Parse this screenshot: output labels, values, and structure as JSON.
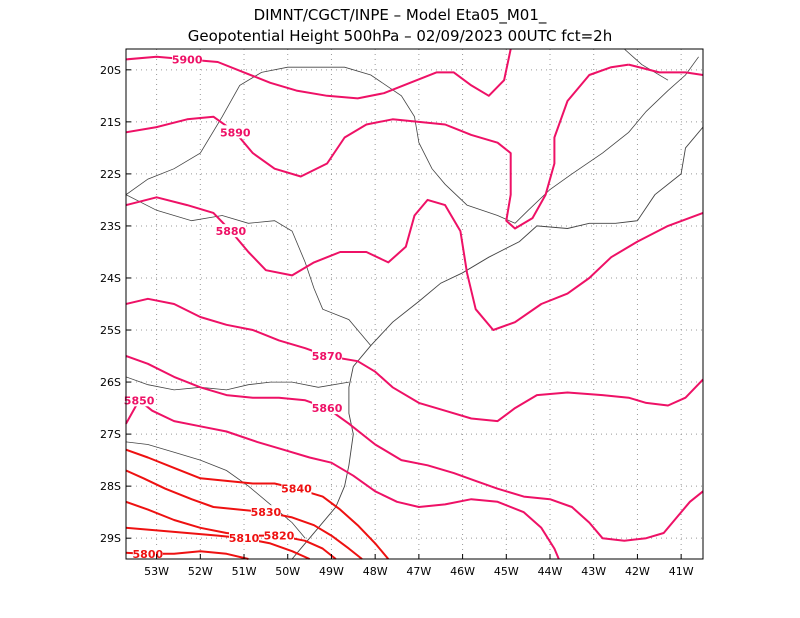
{
  "title_line1": "DIMNT/CGCT/INPE –  Model Eta05_M01_",
  "title_line2": "Geopotential Height 500hPa –  02/09/2023 00UTC fct=2h",
  "colors": {
    "contour_pink": "#ee1166",
    "contour_red": "#ee1111",
    "coast": "#444444",
    "grid": "#999999"
  },
  "axes": {
    "lon_ticks": [
      "53W",
      "52W",
      "51W",
      "50W",
      "49W",
      "48W",
      "47W",
      "46W",
      "45W",
      "44W",
      "43W",
      "42W",
      "41W"
    ],
    "lat_ticks": [
      "20S",
      "21S",
      "22S",
      "23S",
      "24S",
      "25S",
      "26S",
      "27S",
      "28S",
      "29S"
    ],
    "lon_range": [
      -53.7,
      -40.5
    ],
    "lat_range": [
      -29.4,
      -19.6
    ],
    "grid": "dotted"
  },
  "contours": [
    {
      "value": "5900",
      "label": "5900",
      "color": "pink",
      "points": [
        [
          -53.7,
          -19.8
        ],
        [
          -53.0,
          -19.75
        ],
        [
          -52.3,
          -19.8
        ],
        [
          -51.6,
          -19.85
        ],
        [
          -51.0,
          -20.05
        ],
        [
          -50.4,
          -20.25
        ],
        [
          -49.8,
          -20.4
        ],
        [
          -49.1,
          -20.5
        ],
        [
          -48.4,
          -20.55
        ],
        [
          -47.8,
          -20.45
        ],
        [
          -47.2,
          -20.25
        ],
        [
          -46.6,
          -20.05
        ],
        [
          -46.2,
          -20.05
        ],
        [
          -45.8,
          -20.3
        ],
        [
          -45.4,
          -20.5
        ],
        [
          -45.05,
          -20.2
        ],
        [
          -44.9,
          -19.6
        ]
      ]
    },
    {
      "value": "5900",
      "label": "",
      "color": "pink",
      "points": [
        [
          -42.2,
          -19.9
        ],
        [
          -41.5,
          -20.05
        ],
        [
          -40.9,
          -20.05
        ],
        [
          -40.5,
          -20.1
        ]
      ]
    },
    {
      "value": "5890",
      "label": "5890",
      "color": "pink",
      "points": [
        [
          -53.7,
          -21.2
        ],
        [
          -53.0,
          -21.1
        ],
        [
          -52.3,
          -20.95
        ],
        [
          -51.7,
          -20.9
        ],
        [
          -51.2,
          -21.2
        ],
        [
          -50.8,
          -21.6
        ],
        [
          -50.3,
          -21.9
        ],
        [
          -49.7,
          -22.05
        ],
        [
          -49.1,
          -21.8
        ],
        [
          -48.7,
          -21.3
        ],
        [
          -48.2,
          -21.05
        ],
        [
          -47.6,
          -20.95
        ],
        [
          -47.0,
          -21.0
        ],
        [
          -46.4,
          -21.05
        ],
        [
          -45.8,
          -21.25
        ],
        [
          -45.2,
          -21.4
        ],
        [
          -44.9,
          -21.6
        ],
        [
          -44.9,
          -22.4
        ],
        [
          -45.0,
          -22.9
        ],
        [
          -44.8,
          -23.05
        ],
        [
          -44.4,
          -22.85
        ],
        [
          -44.1,
          -22.4
        ],
        [
          -43.9,
          -21.8
        ],
        [
          -43.9,
          -21.3
        ],
        [
          -43.6,
          -20.6
        ],
        [
          -43.1,
          -20.1
        ],
        [
          -42.6,
          -19.95
        ],
        [
          -42.2,
          -19.9
        ]
      ]
    },
    {
      "value": "5880",
      "label": "5880",
      "color": "pink",
      "points": [
        [
          -53.7,
          -22.6
        ],
        [
          -53.0,
          -22.45
        ],
        [
          -52.3,
          -22.6
        ],
        [
          -51.7,
          -22.75
        ],
        [
          -51.3,
          -23.1
        ],
        [
          -50.9,
          -23.5
        ],
        [
          -50.5,
          -23.85
        ],
        [
          -49.9,
          -23.95
        ],
        [
          -49.4,
          -23.7
        ],
        [
          -48.8,
          -23.5
        ],
        [
          -48.2,
          -23.5
        ],
        [
          -47.7,
          -23.7
        ],
        [
          -47.3,
          -23.4
        ],
        [
          -47.1,
          -22.8
        ],
        [
          -46.8,
          -22.5
        ],
        [
          -46.4,
          -22.6
        ],
        [
          -46.05,
          -23.1
        ],
        [
          -45.9,
          -23.9
        ],
        [
          -45.7,
          -24.6
        ],
        [
          -45.3,
          -25.0
        ],
        [
          -44.8,
          -24.85
        ],
        [
          -44.2,
          -24.5
        ],
        [
          -43.6,
          -24.3
        ],
        [
          -43.1,
          -24.0
        ],
        [
          -42.6,
          -23.6
        ],
        [
          -42.0,
          -23.3
        ],
        [
          -41.3,
          -23.0
        ],
        [
          -40.5,
          -22.75
        ]
      ]
    },
    {
      "value": "5870",
      "label": "5870",
      "color": "pink",
      "points": [
        [
          -53.7,
          -24.5
        ],
        [
          -53.2,
          -24.4
        ],
        [
          -52.6,
          -24.5
        ],
        [
          -52.0,
          -24.75
        ],
        [
          -51.4,
          -24.9
        ],
        [
          -50.8,
          -25.0
        ],
        [
          -50.2,
          -25.2
        ],
        [
          -49.6,
          -25.35
        ],
        [
          -49.1,
          -25.5
        ],
        [
          -48.4,
          -25.6
        ],
        [
          -48.0,
          -25.8
        ],
        [
          -47.6,
          -26.1
        ],
        [
          -47.0,
          -26.4
        ],
        [
          -46.4,
          -26.55
        ],
        [
          -45.8,
          -26.7
        ],
        [
          -45.2,
          -26.75
        ],
        [
          -44.8,
          -26.5
        ],
        [
          -44.3,
          -26.25
        ],
        [
          -43.6,
          -26.2
        ],
        [
          -42.8,
          -26.25
        ],
        [
          -42.2,
          -26.3
        ],
        [
          -41.8,
          -26.4
        ],
        [
          -41.3,
          -26.45
        ],
        [
          -40.9,
          -26.3
        ],
        [
          -40.5,
          -25.95
        ]
      ]
    },
    {
      "value": "5860",
      "label": "5860",
      "color": "pink",
      "points": [
        [
          -53.7,
          -25.5
        ],
        [
          -53.2,
          -25.65
        ],
        [
          -52.6,
          -25.9
        ],
        [
          -52.0,
          -26.1
        ],
        [
          -51.4,
          -26.25
        ],
        [
          -50.8,
          -26.3
        ],
        [
          -50.2,
          -26.3
        ],
        [
          -49.6,
          -26.35
        ],
        [
          -49.1,
          -26.5
        ],
        [
          -48.6,
          -26.8
        ],
        [
          -48.0,
          -27.2
        ],
        [
          -47.4,
          -27.5
        ],
        [
          -46.8,
          -27.6
        ],
        [
          -46.2,
          -27.75
        ],
        [
          -45.7,
          -27.9
        ],
        [
          -45.2,
          -28.05
        ],
        [
          -44.6,
          -28.2
        ],
        [
          -44.0,
          -28.25
        ],
        [
          -43.5,
          -28.4
        ],
        [
          -43.1,
          -28.7
        ],
        [
          -42.8,
          -29.0
        ],
        [
          -42.3,
          -29.05
        ],
        [
          -41.8,
          -29.0
        ],
        [
          -41.4,
          -28.9
        ],
        [
          -41.1,
          -28.6
        ],
        [
          -40.8,
          -28.3
        ],
        [
          -40.5,
          -28.1
        ]
      ]
    },
    {
      "value": "5850",
      "label": "5850",
      "color": "pink",
      "points": [
        [
          -53.7,
          -26.8
        ],
        [
          -53.4,
          -26.35
        ],
        [
          -53.1,
          -26.55
        ],
        [
          -52.6,
          -26.75
        ],
        [
          -52.0,
          -26.85
        ],
        [
          -51.4,
          -26.95
        ],
        [
          -50.7,
          -27.15
        ],
        [
          -50.1,
          -27.3
        ],
        [
          -49.5,
          -27.45
        ],
        [
          -49.0,
          -27.55
        ],
        [
          -48.5,
          -27.8
        ],
        [
          -48.0,
          -28.1
        ],
        [
          -47.5,
          -28.3
        ],
        [
          -47.0,
          -28.4
        ],
        [
          -46.4,
          -28.35
        ],
        [
          -45.8,
          -28.25
        ],
        [
          -45.2,
          -28.3
        ],
        [
          -44.6,
          -28.5
        ],
        [
          -44.2,
          -28.8
        ],
        [
          -43.9,
          -29.2
        ],
        [
          -43.8,
          -29.4
        ]
      ]
    },
    {
      "value": "5840",
      "label": "5840",
      "color": "red",
      "points": [
        [
          -53.7,
          -27.3
        ],
        [
          -53.2,
          -27.45
        ],
        [
          -52.6,
          -27.65
        ],
        [
          -52.0,
          -27.85
        ],
        [
          -51.4,
          -27.9
        ],
        [
          -50.8,
          -27.95
        ],
        [
          -50.3,
          -27.95
        ],
        [
          -49.8,
          -28.05
        ],
        [
          -49.2,
          -28.2
        ],
        [
          -48.8,
          -28.45
        ],
        [
          -48.4,
          -28.75
        ],
        [
          -48.0,
          -29.1
        ],
        [
          -47.7,
          -29.4
        ]
      ]
    },
    {
      "value": "5830",
      "label": "5830",
      "color": "red",
      "points": [
        [
          -53.7,
          -27.7
        ],
        [
          -53.3,
          -27.85
        ],
        [
          -52.8,
          -28.05
        ],
        [
          -52.2,
          -28.25
        ],
        [
          -51.7,
          -28.4
        ],
        [
          -51.1,
          -28.45
        ],
        [
          -50.5,
          -28.5
        ],
        [
          -49.9,
          -28.6
        ],
        [
          -49.4,
          -28.75
        ],
        [
          -49.0,
          -28.95
        ],
        [
          -48.6,
          -29.2
        ],
        [
          -48.3,
          -29.4
        ]
      ]
    },
    {
      "value": "5820",
      "label": "5820",
      "color": "red",
      "points": [
        [
          -53.7,
          -28.3
        ],
        [
          -53.2,
          -28.45
        ],
        [
          -52.6,
          -28.65
        ],
        [
          -52.0,
          -28.8
        ],
        [
          -51.4,
          -28.9
        ],
        [
          -50.8,
          -28.95
        ],
        [
          -50.2,
          -28.95
        ],
        [
          -49.6,
          -29.05
        ],
        [
          -49.2,
          -29.2
        ],
        [
          -48.9,
          -29.4
        ]
      ]
    },
    {
      "value": "5810",
      "label": "5810",
      "color": "red",
      "points": [
        [
          -53.7,
          -28.8
        ],
        [
          -53.0,
          -28.85
        ],
        [
          -52.3,
          -28.9
        ],
        [
          -51.6,
          -28.95
        ],
        [
          -51.0,
          -29.0
        ],
        [
          -50.4,
          -29.1
        ],
        [
          -49.9,
          -29.25
        ],
        [
          -49.5,
          -29.4
        ]
      ]
    },
    {
      "value": "5800",
      "label": "5800",
      "color": "red",
      "points": [
        [
          -53.7,
          -29.28
        ],
        [
          -53.2,
          -29.3
        ],
        [
          -52.6,
          -29.3
        ],
        [
          -52.0,
          -29.25
        ],
        [
          -51.4,
          -29.3
        ],
        [
          -50.9,
          -29.4
        ]
      ]
    }
  ],
  "coastline": [
    [
      -40.5,
      -21.1
    ],
    [
      -40.9,
      -21.5
    ],
    [
      -41.0,
      -22.0
    ],
    [
      -41.6,
      -22.4
    ],
    [
      -42.0,
      -22.9
    ],
    [
      -42.5,
      -22.95
    ],
    [
      -43.1,
      -22.95
    ],
    [
      -43.6,
      -23.05
    ],
    [
      -44.3,
      -23.0
    ],
    [
      -44.7,
      -23.3
    ],
    [
      -45.4,
      -23.6
    ],
    [
      -46.0,
      -23.9
    ],
    [
      -46.5,
      -24.1
    ],
    [
      -47.0,
      -24.45
    ],
    [
      -47.6,
      -24.85
    ],
    [
      -48.1,
      -25.3
    ],
    [
      -48.5,
      -25.7
    ],
    [
      -48.6,
      -26.1
    ],
    [
      -48.6,
      -26.6
    ],
    [
      -48.5,
      -27.0
    ],
    [
      -48.6,
      -27.6
    ],
    [
      -48.7,
      -28.0
    ],
    [
      -48.9,
      -28.4
    ],
    [
      -49.3,
      -28.8
    ],
    [
      -49.7,
      -29.2
    ],
    [
      -49.9,
      -29.4
    ]
  ],
  "borders": [
    [
      [
        -53.7,
        -22.4
      ],
      [
        -53.2,
        -22.1
      ],
      [
        -52.6,
        -21.9
      ],
      [
        -52.0,
        -21.6
      ],
      [
        -51.5,
        -20.9
      ],
      [
        -51.1,
        -20.3
      ],
      [
        -50.6,
        -20.05
      ],
      [
        -50.0,
        -19.95
      ],
      [
        -49.3,
        -19.95
      ],
      [
        -48.7,
        -19.95
      ],
      [
        -48.1,
        -20.1
      ],
      [
        -47.4,
        -20.5
      ],
      [
        -47.1,
        -20.9
      ],
      [
        -47.0,
        -21.4
      ],
      [
        -46.7,
        -21.9
      ],
      [
        -46.4,
        -22.2
      ],
      [
        -45.9,
        -22.6
      ],
      [
        -45.2,
        -22.8
      ],
      [
        -44.8,
        -22.95
      ]
    ],
    [
      [
        -53.7,
        -22.4
      ],
      [
        -53.0,
        -22.7
      ],
      [
        -52.2,
        -22.9
      ],
      [
        -51.5,
        -22.8
      ],
      [
        -50.9,
        -22.95
      ],
      [
        -50.3,
        -22.9
      ],
      [
        -49.9,
        -23.1
      ],
      [
        -49.6,
        -23.7
      ],
      [
        -49.4,
        -24.2
      ],
      [
        -49.2,
        -24.6
      ],
      [
        -48.6,
        -24.8
      ],
      [
        -48.1,
        -25.3
      ]
    ],
    [
      [
        -53.7,
        -25.9
      ],
      [
        -53.2,
        -26.05
      ],
      [
        -52.6,
        -26.15
      ],
      [
        -52.0,
        -26.1
      ],
      [
        -51.4,
        -26.15
      ],
      [
        -50.9,
        -26.05
      ],
      [
        -50.4,
        -26.0
      ],
      [
        -49.9,
        -26.0
      ],
      [
        -49.3,
        -26.1
      ],
      [
        -48.6,
        -26.0
      ]
    ],
    [
      [
        -53.7,
        -27.15
      ],
      [
        -53.2,
        -27.2
      ],
      [
        -52.6,
        -27.35
      ],
      [
        -52.0,
        -27.5
      ],
      [
        -51.4,
        -27.7
      ],
      [
        -50.9,
        -28.0
      ],
      [
        -50.4,
        -28.35
      ],
      [
        -49.9,
        -28.7
      ],
      [
        -49.6,
        -29.0
      ]
    ],
    [
      [
        -44.8,
        -22.95
      ],
      [
        -44.5,
        -22.7
      ],
      [
        -44.0,
        -22.3
      ],
      [
        -43.5,
        -22.0
      ],
      [
        -42.8,
        -21.6
      ],
      [
        -42.2,
        -21.2
      ],
      [
        -41.8,
        -20.8
      ],
      [
        -41.3,
        -20.4
      ],
      [
        -40.9,
        -20.1
      ],
      [
        -40.6,
        -19.75
      ]
    ],
    [
      [
        -42.3,
        -19.6
      ],
      [
        -41.9,
        -19.9
      ],
      [
        -41.3,
        -20.2
      ]
    ]
  ]
}
